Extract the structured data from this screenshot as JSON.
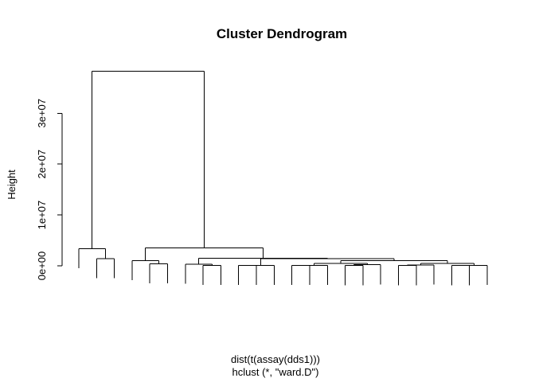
{
  "chart_data": {
    "type": "dendrogram",
    "title": "Cluster Dendrogram",
    "ylabel": "Height",
    "xlabel_lines": [
      "dist(t(assay(dds1)))",
      "hclust (*, \"ward.D\")"
    ],
    "ylim": [
      0,
      38500000
    ],
    "yticks": [
      {
        "value": 0,
        "label": "0e+00"
      },
      {
        "value": 10000000,
        "label": "1e+07"
      },
      {
        "value": 20000000,
        "label": "2e+07"
      },
      {
        "value": 30000000,
        "label": "3e+07"
      }
    ],
    "leaf_count": 24,
    "hang_fraction": 0.1,
    "merges": [
      [
        -2,
        -3,
        1400000
      ],
      [
        -1,
        1,
        3400000
      ],
      [
        -5,
        -6,
        400000
      ],
      [
        -4,
        3,
        1000000
      ],
      [
        -8,
        -9,
        80000
      ],
      [
        -7,
        5,
        300000
      ],
      [
        -10,
        -11,
        60000
      ],
      [
        -12,
        7,
        60000
      ],
      [
        -13,
        -14,
        60000
      ],
      [
        -15,
        9,
        100000
      ],
      [
        -16,
        -17,
        50000
      ],
      [
        -18,
        11,
        200000
      ],
      [
        10,
        12,
        500000
      ],
      [
        -19,
        -20,
        50000
      ],
      [
        -21,
        14,
        150000
      ],
      [
        -22,
        -23,
        40000
      ],
      [
        -24,
        16,
        80000
      ],
      [
        15,
        17,
        450000
      ],
      [
        13,
        18,
        1000000
      ],
      [
        8,
        19,
        1400000
      ],
      [
        6,
        20,
        1500000
      ],
      [
        4,
        21,
        3500000
      ],
      [
        2,
        22,
        38300000
      ]
    ]
  }
}
